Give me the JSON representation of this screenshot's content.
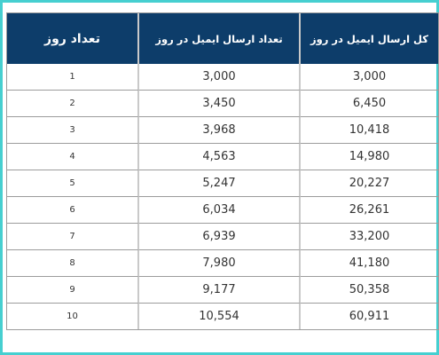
{
  "table": {
    "headers": {
      "day": "تعداد روز",
      "send": "تعداد ارسال ایمیل در روز",
      "total": "کل ارسال ایمیل در روز"
    },
    "rows": [
      {
        "day": "1",
        "send": "3,000",
        "total": "3,000"
      },
      {
        "day": "2",
        "send": "3,450",
        "total": "6,450"
      },
      {
        "day": "3",
        "send": "3,968",
        "total": "10,418"
      },
      {
        "day": "4",
        "send": "4,563",
        "total": "14,980"
      },
      {
        "day": "5",
        "send": "5,247",
        "total": "20,227"
      },
      {
        "day": "6",
        "send": "6,034",
        "total": "26,261"
      },
      {
        "day": "7",
        "send": "6,939",
        "total": "33,200"
      },
      {
        "day": "8",
        "send": "7,980",
        "total": "41,180"
      },
      {
        "day": "9",
        "send": "9,177",
        "total": "50,358"
      },
      {
        "day": "10",
        "send": "10,554",
        "total": "60,911"
      }
    ]
  },
  "colors": {
    "frame_border": "#46cfd0",
    "header_bg": "#0d3d6a",
    "header_text": "#ffffff",
    "cell_text": "#333333"
  }
}
